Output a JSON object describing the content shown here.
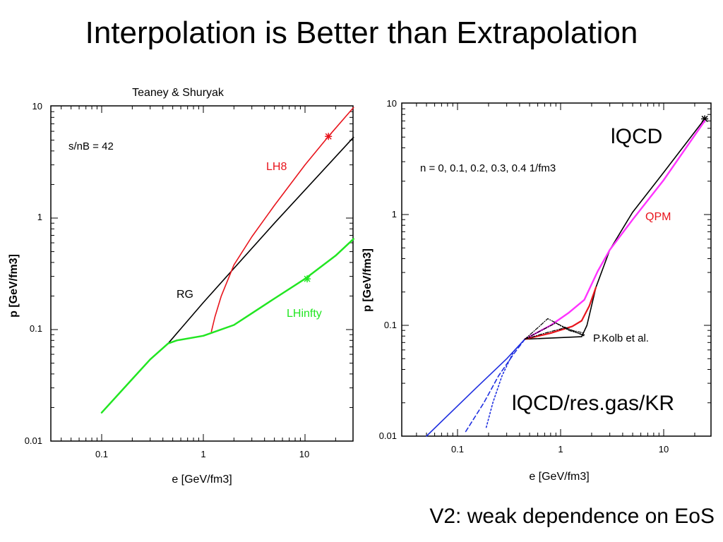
{
  "slide": {
    "title": "Interpolation is Better than Extrapolation",
    "caption": "V2: weak dependence on EoS"
  },
  "colors": {
    "black": "#000000",
    "red": "#e8141c",
    "green": "#22e622",
    "blue": "#1f2fe0",
    "magenta": "#ff33ff"
  },
  "chart_data": [
    {
      "type": "line",
      "title": "Teaney & Shuryak",
      "xlabel": "e [GeV/fm3]",
      "ylabel": "p [GeV/fm3]",
      "x_scale": "log",
      "y_scale": "log",
      "xlim": [
        0.03,
        30
      ],
      "ylim": [
        0.01,
        10
      ],
      "x_ticks": [
        "0.1",
        "1",
        "10"
      ],
      "y_ticks": [
        "0.01",
        "0.1",
        "1",
        "10"
      ],
      "annotation": "s/nB = 42",
      "series": [
        {
          "name": "RG",
          "color": "#000000",
          "points": [
            [
              0.45,
              0.075
            ],
            [
              1,
              0.175
            ],
            [
              5,
              0.9
            ],
            [
              30,
              5.3
            ]
          ]
        },
        {
          "name": "LH8",
          "color": "#e8141c",
          "points": [
            [
              1.2,
              0.096
            ],
            [
              1.3,
              0.13
            ],
            [
              1.5,
              0.2
            ],
            [
              2.0,
              0.38
            ],
            [
              3,
              0.68
            ],
            [
              5,
              1.3
            ],
            [
              10,
              3.0
            ],
            [
              17,
              5.4
            ],
            [
              30,
              9.8
            ]
          ],
          "marker": [
            17,
            5.4
          ]
        },
        {
          "name": "LHinfty",
          "color": "#22e622",
          "points": [
            [
              0.1,
              0.018
            ],
            [
              0.2,
              0.036
            ],
            [
              0.3,
              0.054
            ],
            [
              0.45,
              0.075
            ],
            [
              0.55,
              0.08
            ],
            [
              1,
              0.088
            ],
            [
              2,
              0.11
            ],
            [
              3,
              0.14
            ],
            [
              5,
              0.19
            ],
            [
              10,
              0.285
            ],
            [
              20,
              0.46
            ],
            [
              30,
              0.65
            ]
          ],
          "marker": [
            10.5,
            0.285
          ]
        }
      ]
    },
    {
      "type": "line",
      "title": "",
      "xlabel": "e [GeV/fm3]",
      "ylabel": "p [GeV/fm3]",
      "x_scale": "log",
      "y_scale": "log",
      "xlim": [
        0.03,
        30
      ],
      "ylim": [
        0.01,
        10
      ],
      "x_ticks": [
        "0.1",
        "1",
        "10"
      ],
      "y_ticks": [
        "0.01",
        "0.1",
        "1",
        "10"
      ],
      "annotation": "n = 0, 0.1, 0.2, 0.3, 0.4 1/fm3",
      "labels": {
        "lqcd": "lQCD",
        "qpm": "QPM",
        "kolb": "P.Kolb et al.",
        "resgas": "lQCD/res.gas/KR"
      },
      "series": [
        {
          "name": "lQCD",
          "color": "#000000",
          "points": [
            [
              0.45,
              0.075
            ],
            [
              1.6,
              0.079
            ],
            [
              1.8,
              0.1
            ],
            [
              2.2,
              0.22
            ],
            [
              3,
              0.48
            ],
            [
              5,
              1.05
            ],
            [
              10,
              2.4
            ],
            [
              25,
              7.3
            ]
          ],
          "marker": [
            25,
            7.3
          ]
        },
        {
          "name": "QPM",
          "color": "#ff33ff",
          "points": [
            [
              0.45,
              0.075
            ],
            [
              0.8,
              0.1
            ],
            [
              1.2,
              0.13
            ],
            [
              1.7,
              0.17
            ],
            [
              2.3,
              0.31
            ],
            [
              3,
              0.48
            ],
            [
              5,
              0.9
            ],
            [
              10,
              2.05
            ],
            [
              25,
              7.0
            ]
          ]
        },
        {
          "name": "lQCD/res.gas/KR",
          "color": "#e8141c",
          "points": [
            [
              0.45,
              0.075
            ],
            [
              0.8,
              0.085
            ],
            [
              1.3,
              0.098
            ],
            [
              1.6,
              0.11
            ],
            [
              1.9,
              0.15
            ],
            [
              2.2,
              0.22
            ]
          ]
        },
        {
          "name": "blue-solid",
          "color": "#1f2fe0",
          "points": [
            [
              0.05,
              0.01
            ],
            [
              0.15,
              0.027
            ],
            [
              0.3,
              0.05
            ],
            [
              0.45,
              0.075
            ]
          ]
        },
        {
          "name": "blue-dashed",
          "color": "#1f2fe0",
          "points": [
            [
              0.12,
              0.011
            ],
            [
              0.18,
              0.02
            ],
            [
              0.25,
              0.035
            ],
            [
              0.35,
              0.055
            ],
            [
              0.45,
              0.075
            ]
          ]
        },
        {
          "name": "blue-dotted",
          "color": "#1f2fe0",
          "points": [
            [
              0.19,
              0.012
            ],
            [
              0.22,
              0.02
            ],
            [
              0.27,
              0.035
            ],
            [
              0.35,
              0.058
            ],
            [
              0.45,
              0.075
            ]
          ]
        },
        {
          "name": "black-dashdot-1",
          "color": "#000000",
          "points": [
            [
              0.45,
              0.075
            ],
            [
              0.6,
              0.095
            ],
            [
              0.75,
              0.115
            ],
            [
              1.0,
              0.1
            ],
            [
              1.3,
              0.09
            ],
            [
              1.7,
              0.085
            ]
          ]
        },
        {
          "name": "black-dashdot-2",
          "color": "#000000",
          "points": [
            [
              0.45,
              0.075
            ],
            [
              0.65,
              0.09
            ],
            [
              0.9,
              0.105
            ],
            [
              1.2,
              0.09
            ],
            [
              1.7,
              0.082
            ]
          ]
        },
        {
          "name": "black-dashdot-3",
          "color": "#000000",
          "points": [
            [
              0.45,
              0.075
            ],
            [
              0.7,
              0.085
            ],
            [
              1.1,
              0.095
            ],
            [
              1.4,
              0.087
            ],
            [
              1.7,
              0.08
            ]
          ]
        }
      ]
    }
  ]
}
